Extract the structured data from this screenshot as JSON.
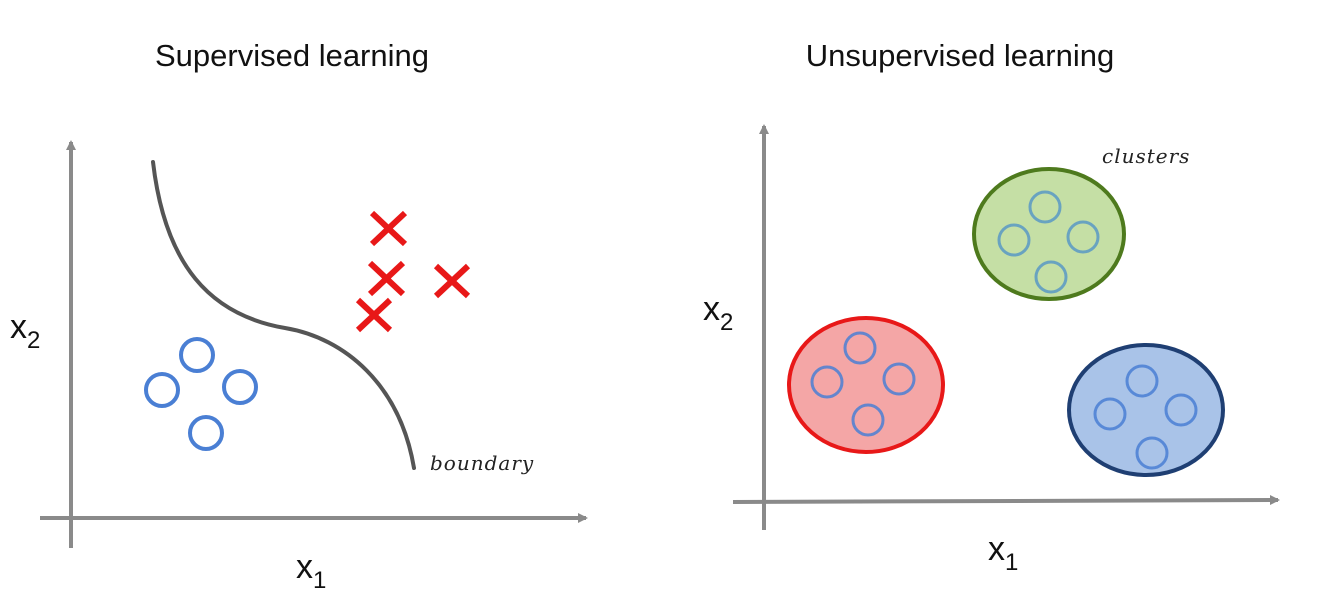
{
  "panels": [
    {
      "title": "Supervised learning",
      "x_label": "x",
      "x_label_sub": "1",
      "y_label": "x",
      "y_label_sub": "2",
      "annotation": "boundary"
    },
    {
      "title": "Unsupervised learning",
      "x_label": "x",
      "x_label_sub": "1",
      "y_label": "x",
      "y_label_sub": "2",
      "annotation": "clusters"
    }
  ],
  "colors": {
    "axis": "#8a8a8a",
    "boundary": "#555555",
    "circle_marker": "#4a7fd4",
    "cross_marker": "#e81818",
    "cluster_red_fill": "#f4a6a6",
    "cluster_red_stroke": "#e81818",
    "cluster_green_fill": "#c5dfa5",
    "cluster_green_stroke": "#4e7a1d",
    "cluster_blue_fill": "#a9c3e8",
    "cluster_blue_stroke": "#1f3f73",
    "cluster_points": "#4a8fc9"
  }
}
